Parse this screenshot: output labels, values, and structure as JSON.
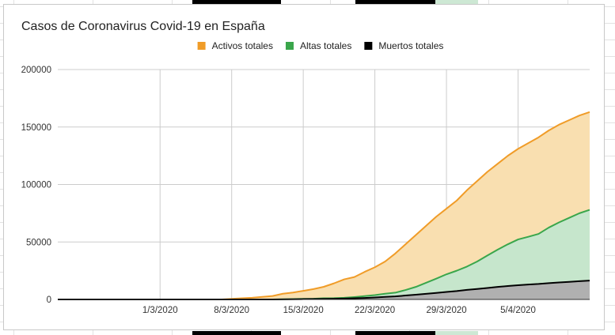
{
  "chart_data": {
    "type": "area",
    "title": "Casos de Coronavirus Covid-19 en España",
    "xlabel": "",
    "ylabel": "",
    "x": [
      "20/2/2020",
      "21/2/2020",
      "22/2/2020",
      "23/2/2020",
      "24/2/2020",
      "25/2/2020",
      "26/2/2020",
      "27/2/2020",
      "28/2/2020",
      "29/2/2020",
      "1/3/2020",
      "2/3/2020",
      "3/3/2020",
      "4/3/2020",
      "5/3/2020",
      "6/3/2020",
      "7/3/2020",
      "8/3/2020",
      "9/3/2020",
      "10/3/2020",
      "11/3/2020",
      "12/3/2020",
      "13/3/2020",
      "14/3/2020",
      "15/3/2020",
      "16/3/2020",
      "17/3/2020",
      "18/3/2020",
      "19/3/2020",
      "20/3/2020",
      "21/3/2020",
      "22/3/2020",
      "23/3/2020",
      "24/3/2020",
      "25/3/2020",
      "26/3/2020",
      "27/3/2020",
      "28/3/2020",
      "29/3/2020",
      "30/3/2020",
      "31/3/2020",
      "1/4/2020",
      "2/4/2020",
      "3/4/2020",
      "4/4/2020",
      "5/4/2020",
      "6/4/2020",
      "7/4/2020",
      "8/4/2020",
      "9/4/2020",
      "10/4/2020",
      "11/4/2020",
      "12/4/2020"
    ],
    "x_ticks": [
      "1/3/2020",
      "8/3/2020",
      "15/3/2020",
      "22/3/2020",
      "29/3/2020",
      "5/4/2020"
    ],
    "ylim": [
      0,
      200000
    ],
    "y_ticks": [
      0,
      50000,
      100000,
      150000,
      200000
    ],
    "y_tick_labels": [
      "0",
      "50000",
      "100000",
      "150000",
      "200000"
    ],
    "grid": true,
    "legend": "top-center",
    "stacked": false,
    "series": [
      {
        "name": "Activos totales",
        "color": "#f09c28",
        "fill": "#f9dfb0",
        "values": [
          0,
          0,
          0,
          0,
          0,
          0,
          0,
          0,
          0,
          0,
          0,
          0,
          0,
          0,
          0,
          0,
          0,
          500,
          1000,
          1500,
          2200,
          3000,
          5000,
          6000,
          7500,
          9000,
          11000,
          14000,
          17500,
          19500,
          24000,
          28000,
          33000,
          40000,
          48000,
          56000,
          64000,
          72000,
          79000,
          86000,
          95000,
          103000,
          111000,
          118000,
          125000,
          131000,
          136000,
          141000,
          147000,
          152000,
          156000,
          160000,
          163000
        ]
      },
      {
        "name": "Altas totales",
        "color": "#3aa64b",
        "fill": "#c6e6cc",
        "values": [
          0,
          0,
          0,
          0,
          0,
          0,
          0,
          0,
          0,
          0,
          0,
          0,
          0,
          0,
          0,
          0,
          0,
          0,
          0,
          0,
          0,
          0,
          200,
          300,
          500,
          600,
          1000,
          1100,
          1500,
          2100,
          2900,
          3800,
          5000,
          5900,
          8200,
          10900,
          14500,
          18100,
          21900,
          25000,
          28600,
          33000,
          38200,
          43300,
          48000,
          52200,
          54500,
          57000,
          62500,
          67000,
          71000,
          75000,
          78000
        ]
      },
      {
        "name": "Muertos totales",
        "color": "#000000",
        "fill": "#b0b0b0",
        "values": [
          0,
          0,
          0,
          0,
          0,
          0,
          0,
          0,
          0,
          0,
          0,
          0,
          0,
          0,
          0,
          0,
          0,
          0,
          0,
          0,
          0,
          0,
          100,
          200,
          300,
          400,
          500,
          600,
          800,
          1000,
          1300,
          1700,
          2200,
          2700,
          3400,
          4100,
          4900,
          5700,
          6500,
          7300,
          8300,
          9100,
          10000,
          10900,
          11700,
          12400,
          13000,
          13500,
          14200,
          14800,
          15300,
          15900,
          16400
        ]
      }
    ]
  }
}
